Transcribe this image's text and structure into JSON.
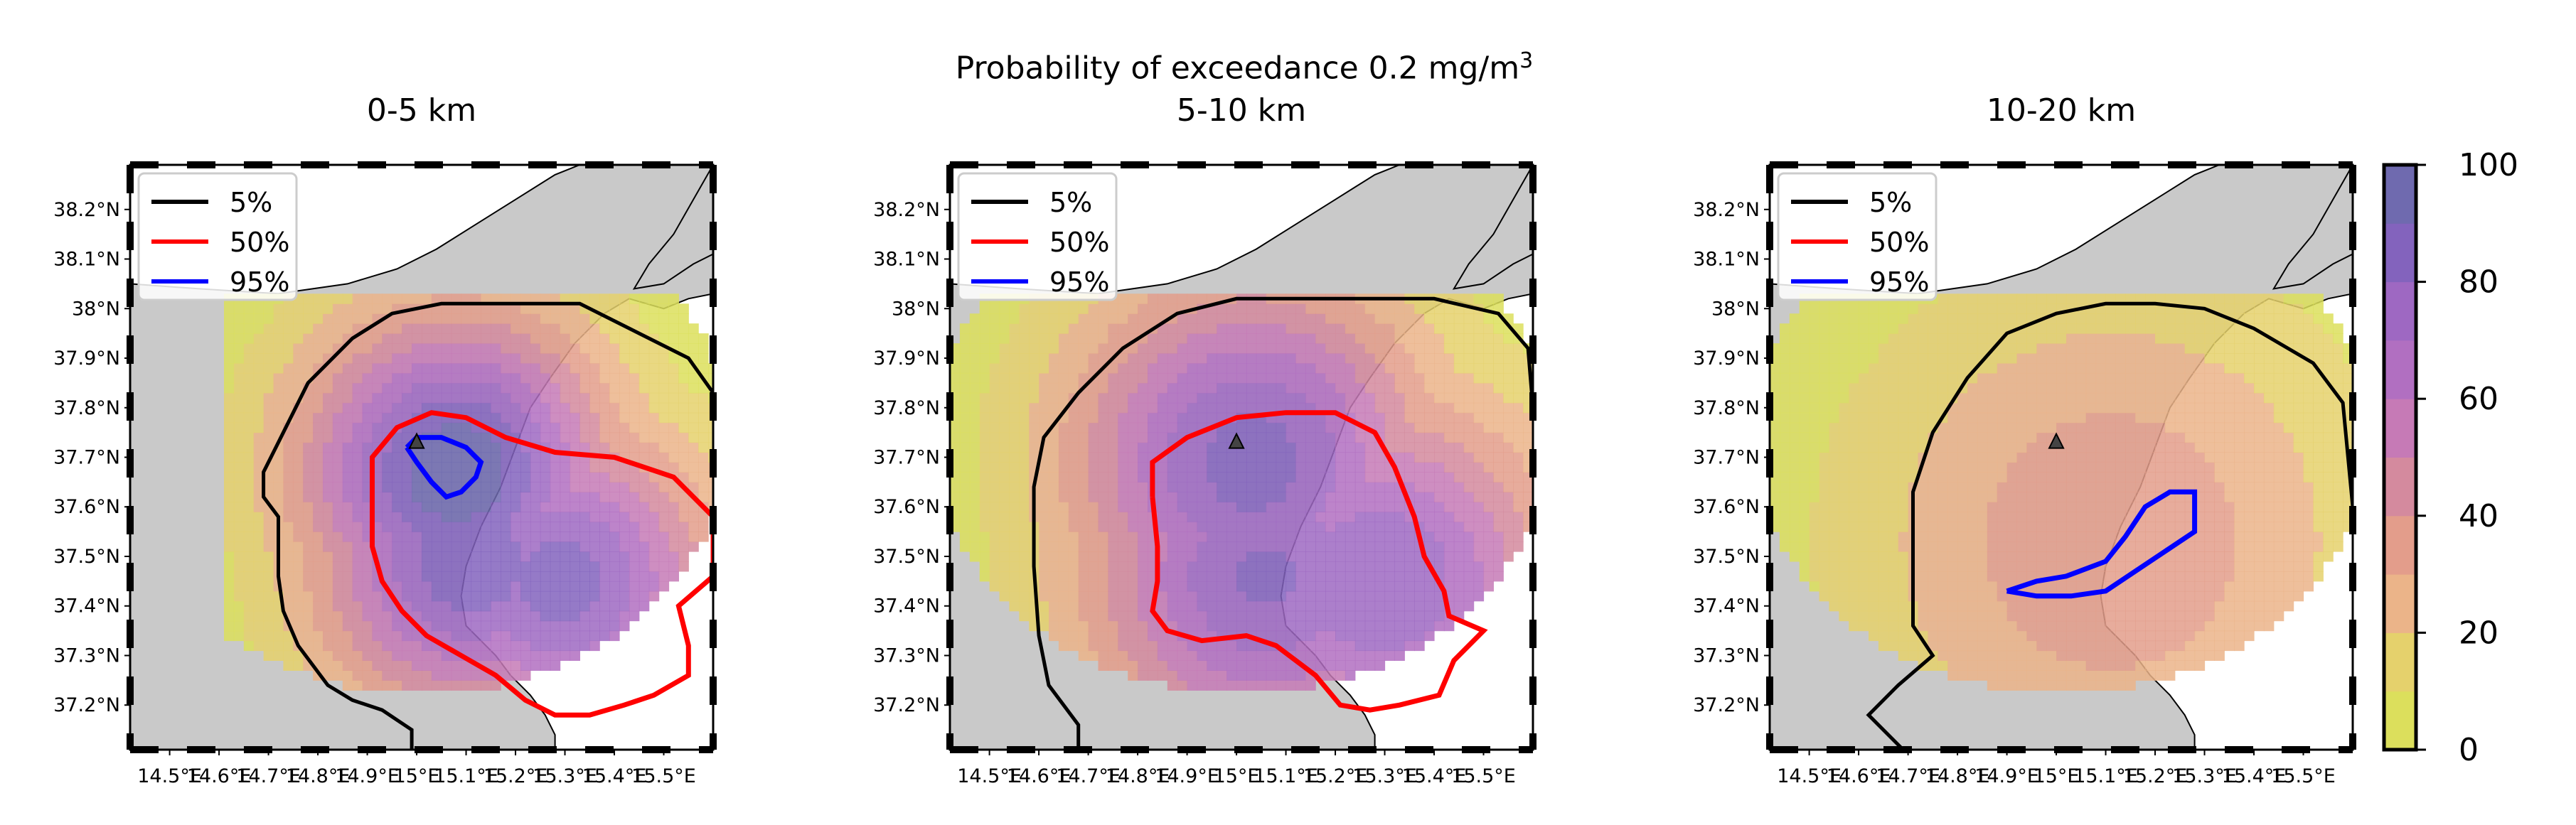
{
  "figure": {
    "suptitle": "Probability of exceedance 0.2 mg/m",
    "suptitle_sup": "3"
  },
  "chart_data": [
    {
      "type": "heatmap",
      "title": "0-5 km",
      "xlabel": "",
      "ylabel": "",
      "xlim": [
        14.42,
        15.6
      ],
      "ylim": [
        37.11,
        38.29
      ],
      "xticks": [
        "14.5°E",
        "14.6°E",
        "14.7°E",
        "14.8°E",
        "14.9°E",
        "15°E",
        "15.1°E",
        "15.2°E",
        "15.3°E",
        "15.4°E",
        "15.5°E"
      ],
      "xtick_values": [
        14.5,
        14.6,
        14.7,
        14.8,
        14.9,
        15.0,
        15.1,
        15.2,
        15.3,
        15.4,
        15.5
      ],
      "yticks": [
        "38.2°N",
        "38.1°N",
        "38°N",
        "37.9°N",
        "37.8°N",
        "37.7°N",
        "37.6°N",
        "37.5°N",
        "37.4°N",
        "37.3°N",
        "37.2°N"
      ],
      "ytick_values": [
        38.2,
        38.1,
        38.0,
        37.9,
        37.8,
        37.7,
        37.6,
        37.5,
        37.4,
        37.3,
        37.2
      ],
      "legend": {
        "placement": "upper-left",
        "entries": [
          {
            "label": "5%",
            "color": "#000000"
          },
          {
            "label": "50%",
            "color": "#ff0000"
          },
          {
            "label": "95%",
            "color": "#0000ff"
          }
        ]
      },
      "vent": {
        "lon": 15.0,
        "lat": 37.73
      },
      "field_centers": [
        [
          15.07,
          37.66,
          98
        ],
        [
          15.1,
          37.48,
          88
        ],
        [
          15.28,
          37.44,
          85
        ]
      ],
      "field_spread": 0.34,
      "field_range_lon": [
        14.61,
        15.6
      ],
      "field_range_lat": [
        37.11,
        38.02
      ],
      "contours": {
        "p5": [
          [
            14.99,
            37.11
          ],
          [
            14.99,
            37.15
          ],
          [
            14.93,
            37.19
          ],
          [
            14.87,
            37.21
          ],
          [
            14.82,
            37.24
          ],
          [
            14.76,
            37.32
          ],
          [
            14.73,
            37.39
          ],
          [
            14.72,
            37.46
          ],
          [
            14.72,
            37.52
          ],
          [
            14.72,
            37.58
          ],
          [
            14.69,
            37.62
          ],
          [
            14.69,
            37.67
          ],
          [
            14.72,
            37.73
          ],
          [
            14.78,
            37.85
          ],
          [
            14.87,
            37.94
          ],
          [
            14.95,
            37.99
          ],
          [
            15.05,
            38.01
          ],
          [
            15.2,
            38.01
          ],
          [
            15.33,
            38.01
          ],
          [
            15.45,
            37.95
          ],
          [
            15.55,
            37.9
          ],
          [
            15.6,
            37.83
          ]
        ],
        "p50": [
          [
            14.91,
            37.62
          ],
          [
            14.91,
            37.7
          ],
          [
            14.96,
            37.76
          ],
          [
            15.03,
            37.79
          ],
          [
            15.1,
            37.78
          ],
          [
            15.18,
            37.74
          ],
          [
            15.28,
            37.71
          ],
          [
            15.4,
            37.7
          ],
          [
            15.52,
            37.66
          ],
          [
            15.6,
            37.58
          ],
          [
            15.6,
            37.46
          ],
          [
            15.53,
            37.4
          ],
          [
            15.55,
            37.32
          ],
          [
            15.55,
            37.26
          ],
          [
            15.48,
            37.22
          ],
          [
            15.42,
            37.2
          ],
          [
            15.35,
            37.18
          ],
          [
            15.28,
            37.18
          ],
          [
            15.22,
            37.21
          ],
          [
            15.16,
            37.26
          ],
          [
            15.09,
            37.3
          ],
          [
            15.02,
            37.34
          ],
          [
            14.97,
            37.39
          ],
          [
            14.93,
            37.45
          ],
          [
            14.91,
            37.52
          ],
          [
            14.91,
            37.62
          ]
        ],
        "p95": [
          [
            14.98,
            37.72
          ],
          [
            15.0,
            37.74
          ],
          [
            15.05,
            37.74
          ],
          [
            15.1,
            37.72
          ],
          [
            15.13,
            37.69
          ],
          [
            15.12,
            37.66
          ],
          [
            15.09,
            37.63
          ],
          [
            15.06,
            37.62
          ],
          [
            15.03,
            37.65
          ],
          [
            15.0,
            37.69
          ],
          [
            14.98,
            37.72
          ]
        ]
      }
    },
    {
      "type": "heatmap",
      "title": "5-10 km",
      "xlabel": "",
      "ylabel": "",
      "xlim": [
        14.42,
        15.6
      ],
      "ylim": [
        37.11,
        38.29
      ],
      "xticks": [
        "14.5°E",
        "14.6°E",
        "14.7°E",
        "14.8°E",
        "14.9°E",
        "15°E",
        "15.1°E",
        "15.2°E",
        "15.3°E",
        "15.4°E",
        "15.5°E"
      ],
      "xtick_values": [
        14.5,
        14.6,
        14.7,
        14.8,
        14.9,
        15.0,
        15.1,
        15.2,
        15.3,
        15.4,
        15.5
      ],
      "yticks": [
        "38.2°N",
        "38.1°N",
        "38°N",
        "37.9°N",
        "37.8°N",
        "37.7°N",
        "37.6°N",
        "37.5°N",
        "37.4°N",
        "37.3°N",
        "37.2°N"
      ],
      "ytick_values": [
        38.2,
        38.1,
        38.0,
        37.9,
        37.8,
        37.7,
        37.6,
        37.5,
        37.4,
        37.3,
        37.2
      ],
      "legend": {
        "placement": "upper-left",
        "entries": [
          {
            "label": "5%",
            "color": "#000000"
          },
          {
            "label": "50%",
            "color": "#ff0000"
          },
          {
            "label": "95%",
            "color": "#0000ff"
          }
        ]
      },
      "vent": {
        "lon": 15.0,
        "lat": 37.73
      },
      "field_centers": [
        [
          15.02,
          37.68,
          85
        ],
        [
          15.05,
          37.45,
          82
        ],
        [
          15.28,
          37.44,
          80
        ]
      ],
      "field_spread": 0.4,
      "field_range_lon": [
        14.42,
        15.6
      ],
      "field_range_lat": [
        37.11,
        38.02
      ],
      "contours": {
        "p5": [
          [
            14.68,
            37.11
          ],
          [
            14.68,
            37.16
          ],
          [
            14.62,
            37.24
          ],
          [
            14.6,
            37.34
          ],
          [
            14.59,
            37.48
          ],
          [
            14.59,
            37.64
          ],
          [
            14.61,
            37.74
          ],
          [
            14.68,
            37.83
          ],
          [
            14.77,
            37.92
          ],
          [
            14.88,
            37.99
          ],
          [
            15.0,
            38.02
          ],
          [
            15.2,
            38.02
          ],
          [
            15.4,
            38.02
          ],
          [
            15.53,
            37.99
          ],
          [
            15.59,
            37.92
          ],
          [
            15.6,
            37.8
          ]
        ],
        "p50": [
          [
            14.83,
            37.62
          ],
          [
            14.83,
            37.69
          ],
          [
            14.9,
            37.74
          ],
          [
            15.0,
            37.78
          ],
          [
            15.1,
            37.79
          ],
          [
            15.2,
            37.79
          ],
          [
            15.28,
            37.75
          ],
          [
            15.32,
            37.68
          ],
          [
            15.36,
            37.58
          ],
          [
            15.38,
            37.5
          ],
          [
            15.42,
            37.43
          ],
          [
            15.43,
            37.38
          ],
          [
            15.5,
            37.35
          ],
          [
            15.44,
            37.29
          ],
          [
            15.41,
            37.22
          ],
          [
            15.33,
            37.2
          ],
          [
            15.27,
            37.19
          ],
          [
            15.21,
            37.2
          ],
          [
            15.16,
            37.26
          ],
          [
            15.08,
            37.32
          ],
          [
            15.02,
            37.34
          ],
          [
            14.93,
            37.33
          ],
          [
            14.86,
            37.35
          ],
          [
            14.83,
            37.39
          ],
          [
            14.84,
            37.45
          ],
          [
            14.84,
            37.52
          ],
          [
            14.83,
            37.62
          ]
        ],
        "p95": []
      }
    },
    {
      "type": "heatmap",
      "title": "10-20 km",
      "xlabel": "",
      "ylabel": "",
      "xlim": [
        14.42,
        15.6
      ],
      "ylim": [
        37.11,
        38.29
      ],
      "xticks": [
        "14.5°E",
        "14.6°E",
        "14.7°E",
        "14.8°E",
        "14.9°E",
        "15°E",
        "15.1°E",
        "15.2°E",
        "15.3°E",
        "15.4°E",
        "15.5°E"
      ],
      "xtick_values": [
        14.5,
        14.6,
        14.7,
        14.8,
        14.9,
        15.0,
        15.1,
        15.2,
        15.3,
        15.4,
        15.5
      ],
      "yticks": [
        "38.2°N",
        "38.1°N",
        "38°N",
        "37.9°N",
        "37.8°N",
        "37.7°N",
        "37.6°N",
        "37.5°N",
        "37.4°N",
        "37.3°N",
        "37.2°N"
      ],
      "ytick_values": [
        38.2,
        38.1,
        38.0,
        37.9,
        37.8,
        37.7,
        37.6,
        37.5,
        37.4,
        37.3,
        37.2
      ],
      "legend": {
        "placement": "upper-left",
        "entries": [
          {
            "label": "5%",
            "color": "#000000"
          },
          {
            "label": "50%",
            "color": "#ff0000"
          },
          {
            "label": "95%",
            "color": "#0000ff"
          }
        ]
      },
      "vent": {
        "lon": 15.0,
        "lat": 37.73
      },
      "field_centers": [
        [
          15.1,
          37.52,
          38
        ]
      ],
      "field_spread": 0.55,
      "field_range_lon": [
        14.42,
        15.6
      ],
      "field_range_lat": [
        37.11,
        38.02
      ],
      "contours": {
        "p5": [
          [
            14.69,
            37.11
          ],
          [
            14.62,
            37.18
          ],
          [
            14.68,
            37.24
          ],
          [
            14.75,
            37.3
          ],
          [
            14.71,
            37.36
          ],
          [
            14.71,
            37.5
          ],
          [
            14.71,
            37.63
          ],
          [
            14.75,
            37.75
          ],
          [
            14.82,
            37.86
          ],
          [
            14.9,
            37.95
          ],
          [
            15.0,
            37.99
          ],
          [
            15.1,
            38.01
          ],
          [
            15.2,
            38.01
          ],
          [
            15.3,
            38.0
          ],
          [
            15.4,
            37.96
          ],
          [
            15.52,
            37.89
          ],
          [
            15.58,
            37.81
          ],
          [
            15.6,
            37.6
          ]
        ],
        "p50": [],
        "p95": [
          [
            14.9,
            37.43
          ],
          [
            14.96,
            37.45
          ],
          [
            15.02,
            37.46
          ],
          [
            15.1,
            37.49
          ],
          [
            15.14,
            37.54
          ],
          [
            15.18,
            37.6
          ],
          [
            15.23,
            37.63
          ],
          [
            15.28,
            37.63
          ],
          [
            15.28,
            37.55
          ],
          [
            15.22,
            37.51
          ],
          [
            15.16,
            37.47
          ],
          [
            15.1,
            37.43
          ],
          [
            15.03,
            37.42
          ],
          [
            14.96,
            37.42
          ],
          [
            14.9,
            37.43
          ]
        ]
      }
    }
  ],
  "colorbar": {
    "ticks": [
      "0",
      "20",
      "40",
      "60",
      "80",
      "100"
    ],
    "tick_values": [
      0,
      20,
      40,
      60,
      80,
      100
    ],
    "min": 0,
    "max": 100,
    "colors": [
      "#dcdf5c",
      "#e5d16c",
      "#ebb489",
      "#e39d8b",
      "#d48a9e",
      "#c67ab6",
      "#b16fc1",
      "#9e68c2",
      "#8363bd",
      "#6f6aaf"
    ]
  },
  "map": {
    "land_color": "#c9c9c9",
    "sea_color": "#ffffff"
  }
}
